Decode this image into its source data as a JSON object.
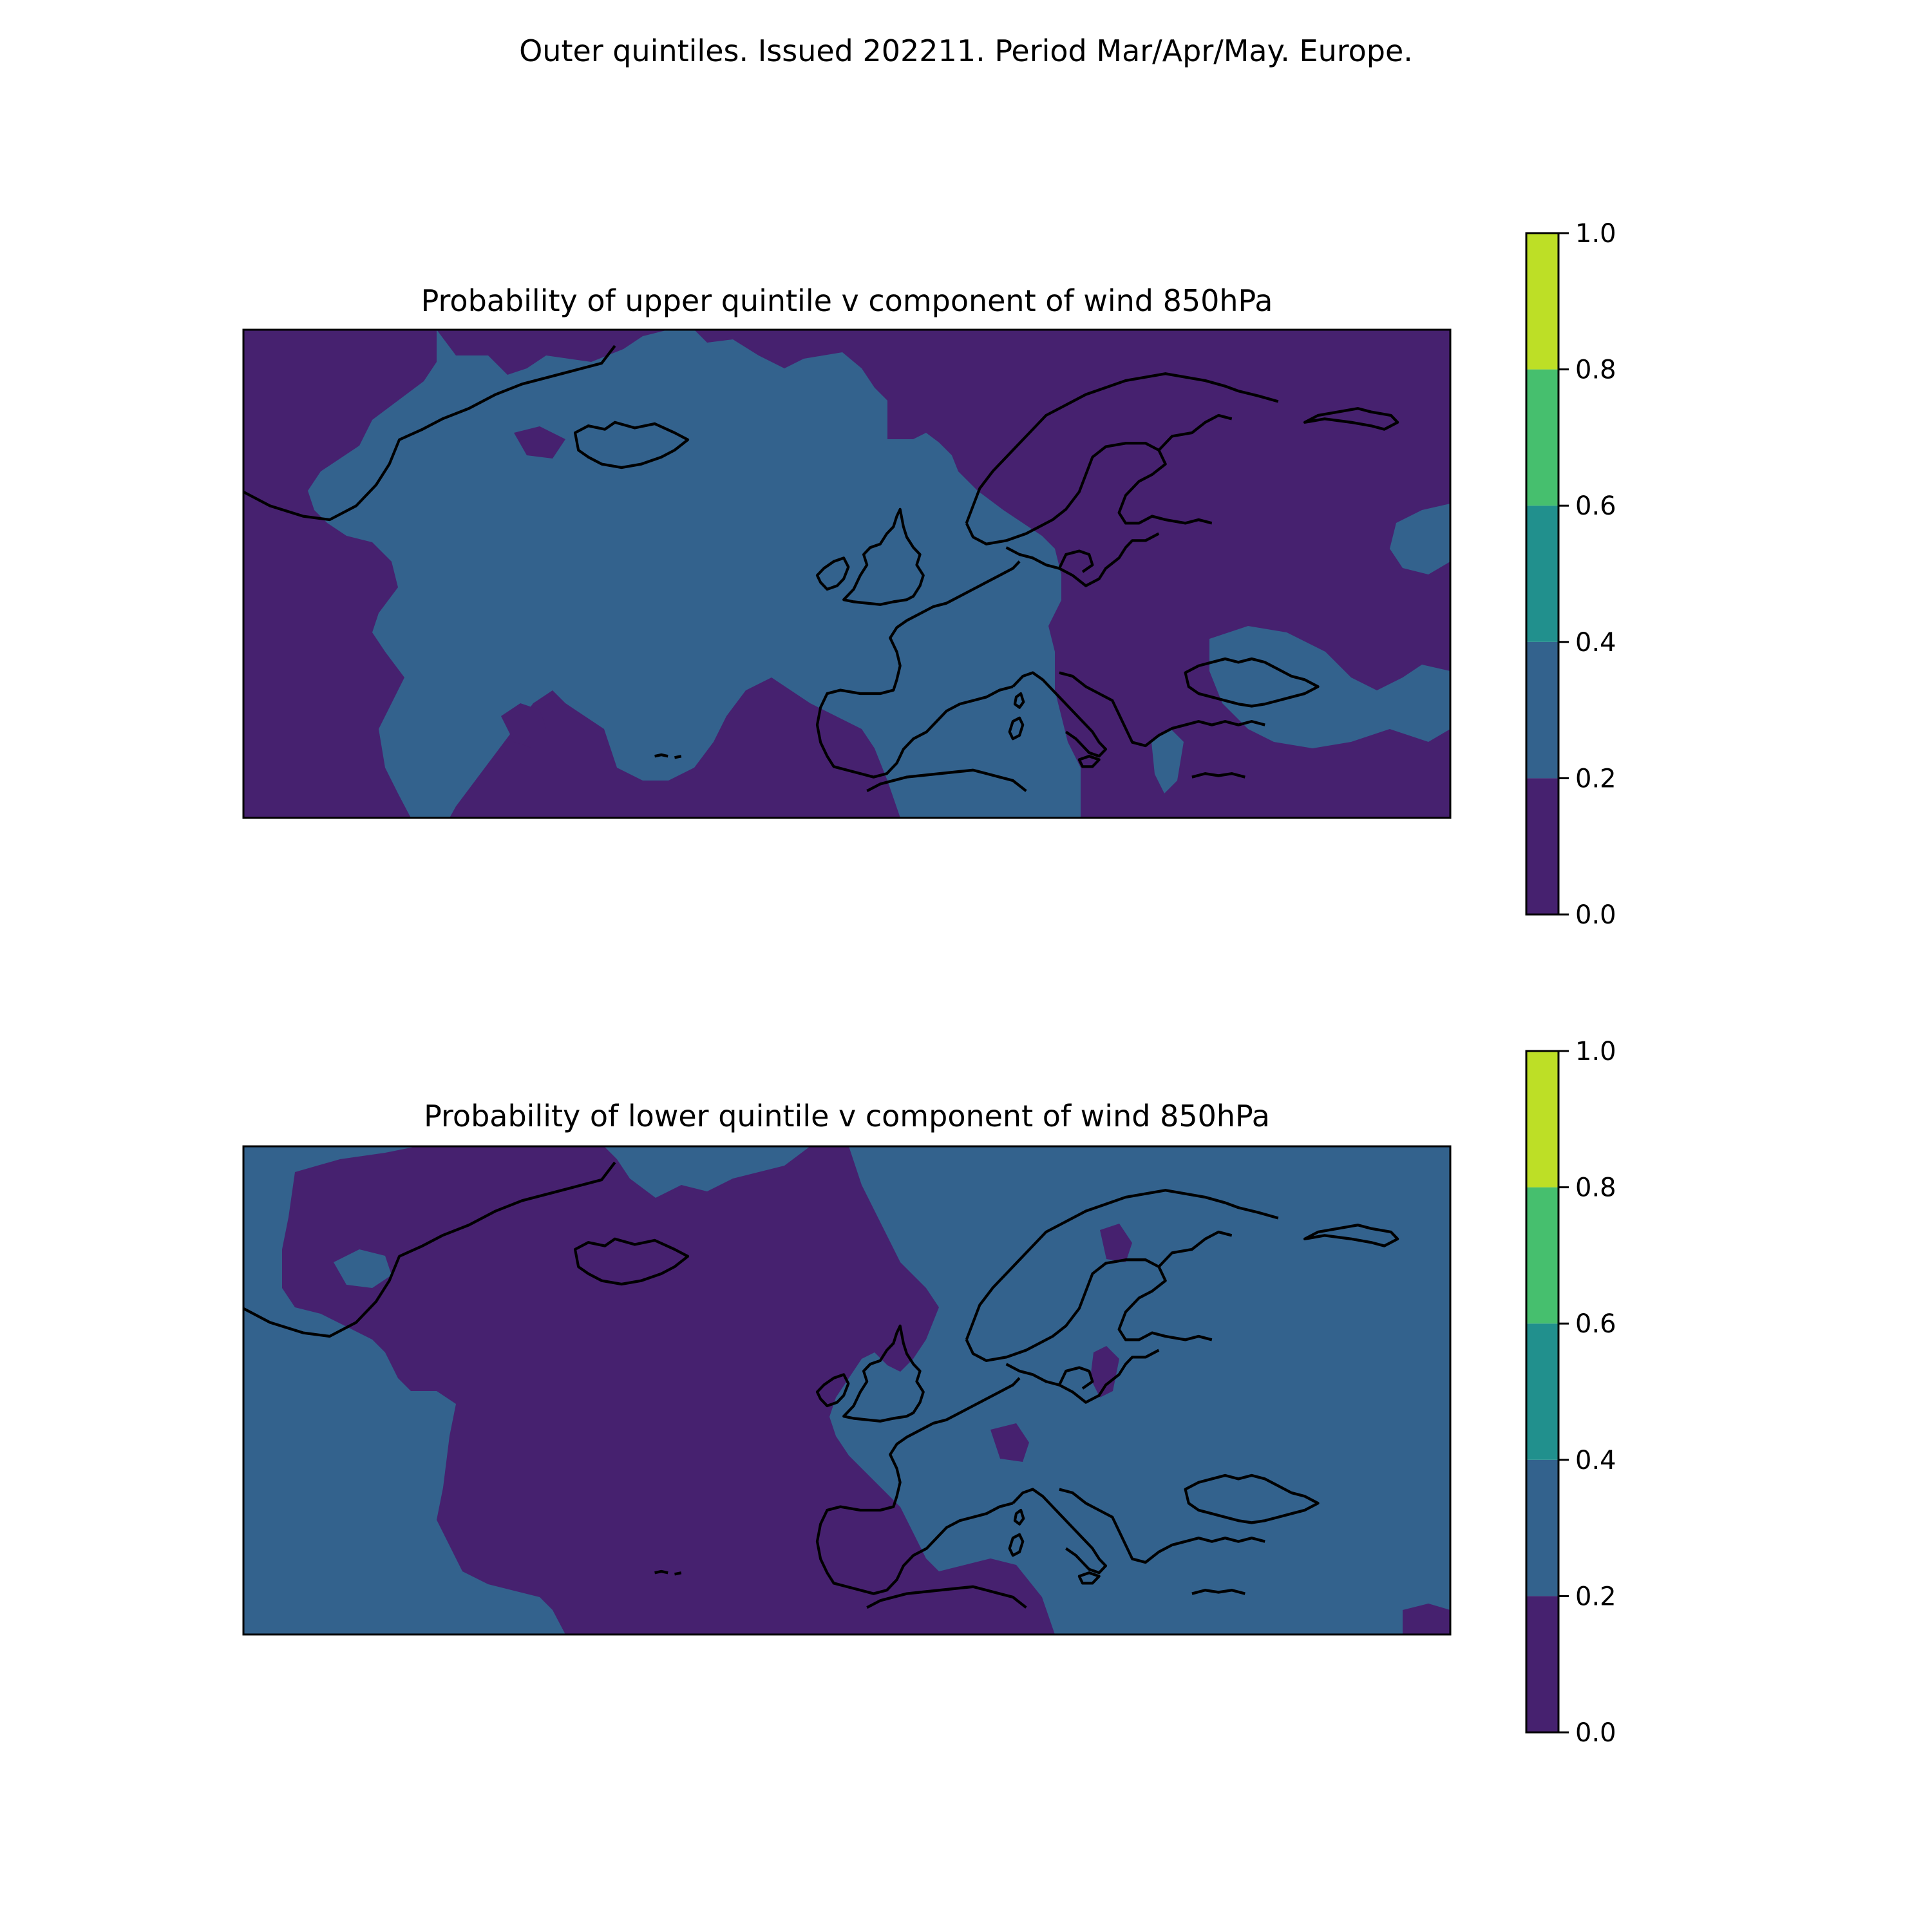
{
  "figure": {
    "suptitle": "Outer quintiles. Issued 202211. Period Mar/Apr/May. Europe."
  },
  "panels": [
    {
      "title": "Probability of upper quintile v component of wind 850hPa",
      "dominant_level": "0.2-0.4",
      "secondary_level": "0.0-0.2"
    },
    {
      "title": "Probability of lower quintile v component of wind 850hPa",
      "dominant_level": "0.2-0.4",
      "secondary_level": "0.0-0.2"
    }
  ],
  "colorbar": {
    "levels": [
      0.0,
      0.2,
      0.4,
      0.6,
      0.8,
      1.0
    ],
    "tick_labels": [
      "0.0",
      "0.2",
      "0.4",
      "0.6",
      "0.8",
      "1.0"
    ],
    "colors": [
      "#46216f",
      "#33628d",
      "#21908d",
      "#46bf6e",
      "#bddf26"
    ]
  },
  "chart_data": [
    {
      "type": "heatmap",
      "title": "Probability of upper quintile v component of wind 850hPa",
      "value_bins": [
        [
          0.0,
          0.2
        ],
        [
          0.2,
          0.4
        ],
        [
          0.4,
          0.6
        ],
        [
          0.6,
          0.8
        ],
        [
          0.8,
          1.0
        ]
      ],
      "bins_present": [
        "0.0-0.2",
        "0.2-0.4"
      ],
      "colorbar_ticks": [
        0.0,
        0.2,
        0.4,
        0.6,
        0.8,
        1.0
      ]
    },
    {
      "type": "heatmap",
      "title": "Probability of lower quintile v component of wind 850hPa",
      "value_bins": [
        [
          0.0,
          0.2
        ],
        [
          0.2,
          0.4
        ],
        [
          0.4,
          0.6
        ],
        [
          0.6,
          0.8
        ],
        [
          0.8,
          1.0
        ]
      ],
      "bins_present": [
        "0.0-0.2",
        "0.2-0.4"
      ],
      "colorbar_ticks": [
        0.0,
        0.2,
        0.4,
        0.6,
        0.8,
        1.0
      ]
    }
  ]
}
